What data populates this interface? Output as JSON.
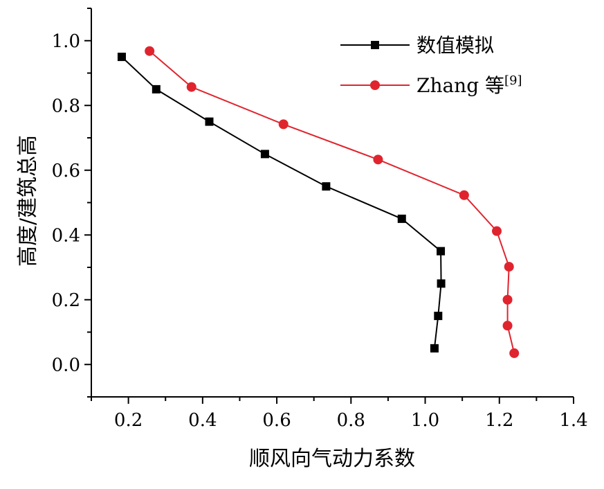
{
  "chart_data": {
    "type": "line",
    "xlabel": "顺风向气动力系数",
    "ylabel": "高度/建筑总高",
    "xlim": [
      0.1,
      1.4
    ],
    "ylim": [
      -0.1,
      1.1
    ],
    "xticks": [
      0.2,
      0.4,
      0.6,
      0.8,
      1.0,
      1.2,
      1.4
    ],
    "xtick_labels": [
      "0.2",
      "0.4",
      "0.6",
      "0.8",
      "1.0",
      "1.2",
      "1.4"
    ],
    "yticks": [
      0.0,
      0.2,
      0.4,
      0.6,
      0.8,
      1.0
    ],
    "ytick_labels": [
      "0.0",
      "0.2",
      "0.4",
      "0.6",
      "0.8",
      "1.0"
    ],
    "grid": false,
    "legend_position": "top-right",
    "series": [
      {
        "name": "数值模拟",
        "marker": "square",
        "color": "#000000",
        "points": [
          {
            "x": 1.025,
            "y": 0.05
          },
          {
            "x": 1.035,
            "y": 0.15
          },
          {
            "x": 1.043,
            "y": 0.25
          },
          {
            "x": 1.042,
            "y": 0.35
          },
          {
            "x": 0.937,
            "y": 0.45
          },
          {
            "x": 0.733,
            "y": 0.55
          },
          {
            "x": 0.568,
            "y": 0.65
          },
          {
            "x": 0.418,
            "y": 0.75
          },
          {
            "x": 0.275,
            "y": 0.85
          },
          {
            "x": 0.182,
            "y": 0.95
          }
        ]
      },
      {
        "name": "Zhang 等",
        "name_superscript": "[9]",
        "marker": "circle",
        "color": "#e0242e",
        "points": [
          {
            "x": 1.24,
            "y": 0.035
          },
          {
            "x": 1.222,
            "y": 0.12
          },
          {
            "x": 1.222,
            "y": 0.2
          },
          {
            "x": 1.226,
            "y": 0.302
          },
          {
            "x": 1.193,
            "y": 0.412
          },
          {
            "x": 1.105,
            "y": 0.523
          },
          {
            "x": 0.873,
            "y": 0.633
          },
          {
            "x": 0.618,
            "y": 0.742
          },
          {
            "x": 0.37,
            "y": 0.857
          },
          {
            "x": 0.257,
            "y": 0.968
          }
        ]
      }
    ]
  }
}
